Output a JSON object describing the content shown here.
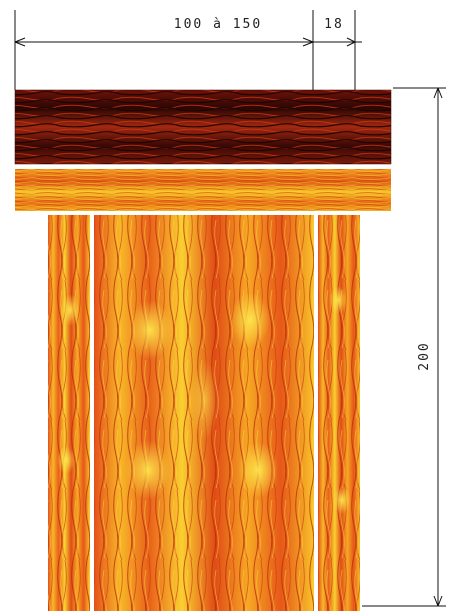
{
  "dimensions": {
    "width_label": "100 à 150",
    "thickness_label": "18",
    "height_label": "200"
  },
  "colors": {
    "line": "#111111",
    "wood_dark_base": "#3a0a06",
    "wood_dark_grain": "#c1330f",
    "wood_light_base": "#f08018",
    "wood_light_grain": "#f8d020",
    "wood_stripe": "#d4320e",
    "gap": "#ffffff"
  }
}
